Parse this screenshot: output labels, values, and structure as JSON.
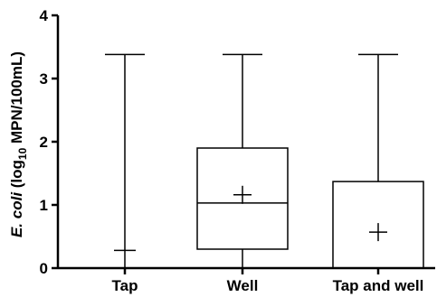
{
  "chart_data": {
    "type": "box",
    "categories": [
      "Tap",
      "Well",
      "Tap and well"
    ],
    "ylim": [
      0,
      4
    ],
    "yticks": [
      0,
      1,
      2,
      3,
      4
    ],
    "ylabel": {
      "italic_part": "E. coli",
      "pre": " (log",
      "sub": "10",
      "post": " MPN/100mL)"
    },
    "xlabel": "",
    "boxes": [
      {
        "category": "Tap",
        "min": 0.0,
        "q1": 0.0,
        "median": 0.0,
        "q3": 0.0,
        "max": 3.38,
        "mean": 0.28
      },
      {
        "category": "Well",
        "min": 0.0,
        "q1": 0.3,
        "median": 1.03,
        "q3": 1.9,
        "max": 3.38,
        "mean": 1.16
      },
      {
        "category": "Tap and well",
        "min": 0.0,
        "q1": 0.0,
        "median": 0.0,
        "q3": 1.37,
        "max": 3.38,
        "mean": 0.57
      }
    ],
    "colors": {
      "line": "#000000",
      "background": "#ffffff"
    }
  }
}
